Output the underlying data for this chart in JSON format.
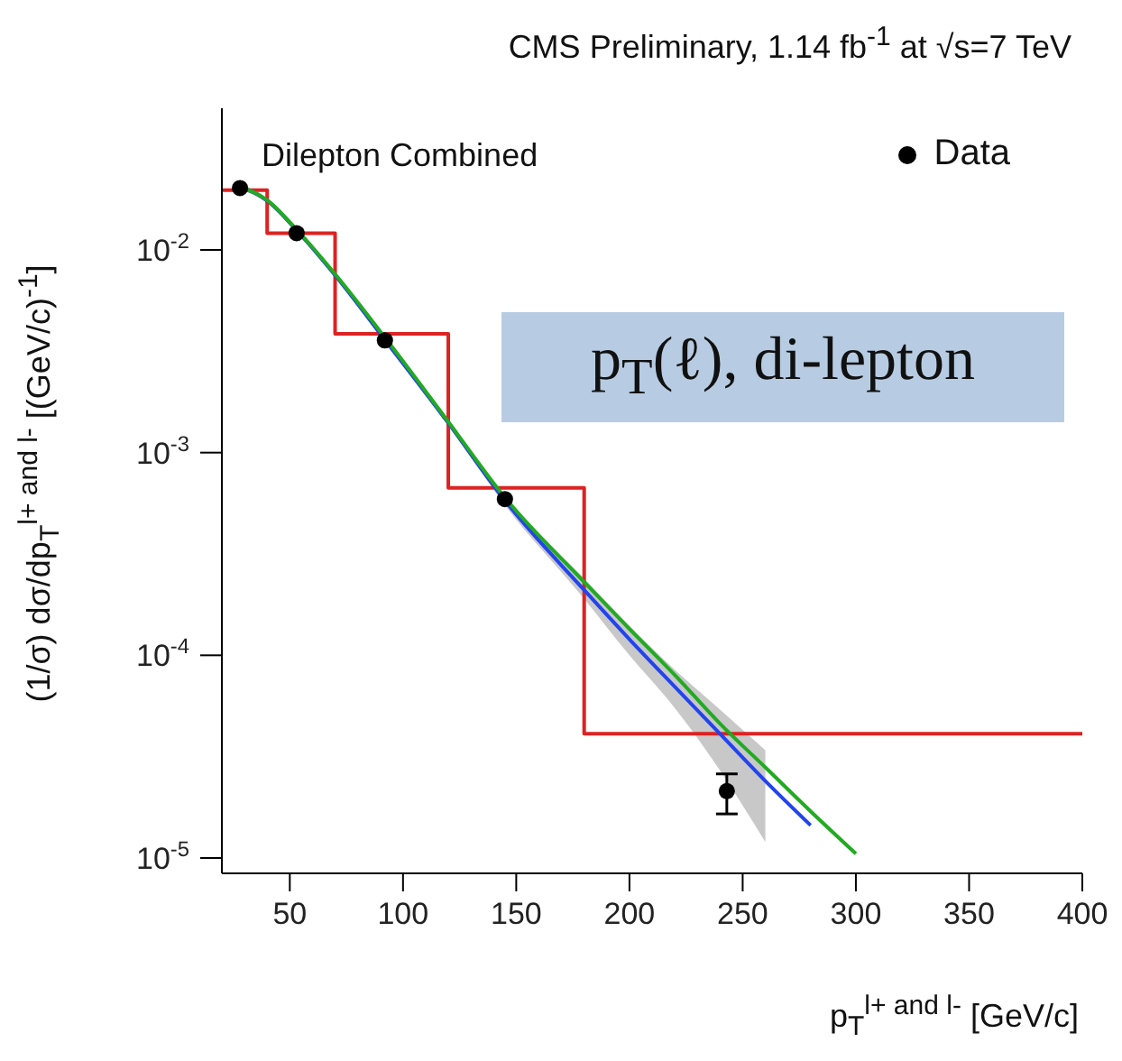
{
  "chart_data": {
    "type": "line",
    "title": "CMS Preliminary, 1.14 fb$^{-1}$ at √s=7 TeV",
    "xlabel": "p$_{T}$$^{l+ and l-}$ [GeV/c]",
    "ylabel": "(1/σ) dσ/dp$_{T}$$^{l+ and l-}$ [(GeV/c)$^{-1}$]",
    "annotations": [
      "Dilepton Combined",
      "p$_{T}$(ℓ), di-lepton"
    ],
    "xlim": [
      20,
      400
    ],
    "xticks": [
      50,
      100,
      150,
      200,
      250,
      300,
      350,
      400
    ],
    "ylim": [
      8.4e-06,
      0.05
    ],
    "yticks": [
      {
        "value": 1e-05,
        "label": "10$^{-5}$"
      },
      {
        "value": 0.0001,
        "label": "10$^{-4}$"
      },
      {
        "value": 0.001,
        "label": "10$^{-3}$"
      },
      {
        "value": 0.01,
        "label": "10$^{-2}$"
      }
    ],
    "log": "y",
    "legend": "top right",
    "series": [
      {
        "type": "step",
        "color": "#dd2222",
        "marker": "none",
        "x": [
          20,
          40,
          70,
          120,
          180,
          400
        ],
        "values": [
          0.0197,
          0.0121,
          0.00386,
          0.00067,
          4.1e-05,
          4.1e-05
        ]
      },
      {
        "color": "#2244ee",
        "marker": "none",
        "x": [
          25,
          28,
          40,
          53,
          70,
          92,
          120,
          145,
          180,
          200,
          220,
          240,
          260,
          280
        ],
        "values": [
          0.0205,
          0.0203,
          0.0175,
          0.0125,
          0.0075,
          0.0036,
          0.0014,
          0.00058,
          0.00021,
          0.00012,
          7e-05,
          4.1e-05,
          2.4e-05,
          1.45e-05
        ],
        "lower": [
          0.0199,
          0.0197,
          0.017,
          0.0121,
          0.0073,
          0.0035,
          0.00136,
          0.00055,
          0.00019,
          0.0001,
          5.5e-05,
          2.7e-05,
          1.2e-05,
          null
        ],
        "upper": [
          0.0211,
          0.0209,
          0.018,
          0.0129,
          0.0077,
          0.0037,
          0.00144,
          0.00061,
          0.00024,
          0.00014,
          8.5e-05,
          5.4e-05,
          3.4e-05,
          null
        ]
      },
      {
        "color": "#22aa22",
        "marker": "none",
        "x": [
          25,
          28,
          40,
          53,
          70,
          92,
          120,
          145,
          180,
          200,
          220,
          240,
          260,
          280,
          300
        ],
        "values": [
          0.0205,
          0.0203,
          0.0176,
          0.0126,
          0.0076,
          0.0037,
          0.00142,
          0.0006,
          0.00023,
          0.000135,
          8e-05,
          4.6e-05,
          2.8e-05,
          1.7e-05,
          1.05e-05
        ]
      },
      {
        "type": "scatter",
        "name": "Data",
        "color": "#000000",
        "marker": "circle",
        "x": [
          28,
          53,
          92,
          145,
          243
        ],
        "values": [
          0.0202,
          0.0121,
          0.00358,
          0.00059,
          2.14e-05
        ],
        "errors": [
          null,
          null,
          null,
          null,
          [
            1.65e-05,
            2.6e-05
          ]
        ]
      }
    ]
  }
}
